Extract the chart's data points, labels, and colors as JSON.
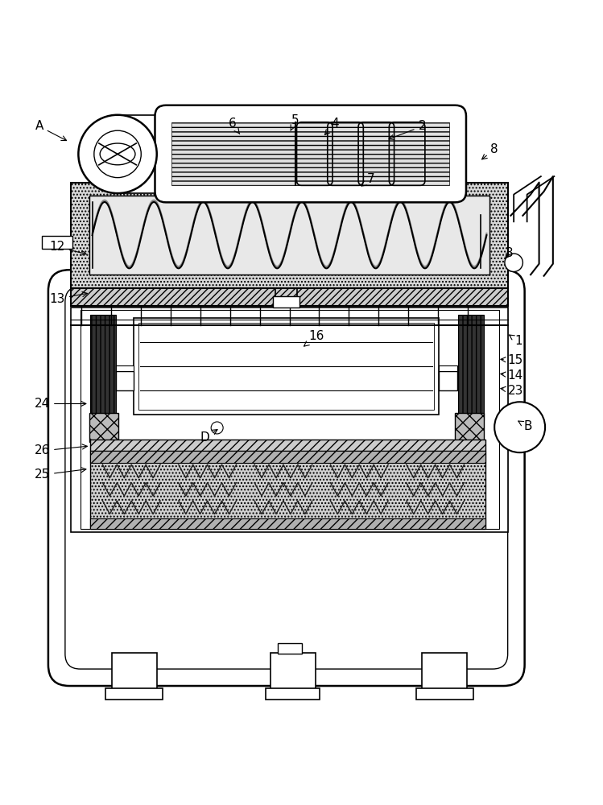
{
  "bg_color": "#ffffff",
  "lc": "#000000",
  "figsize": [
    7.49,
    10.0
  ],
  "dpi": 100,
  "labels": {
    "A": [
      0.065,
      0.958,
      0.115,
      0.932
    ],
    "2": [
      0.7,
      0.958,
      0.64,
      0.935
    ],
    "8": [
      0.82,
      0.92,
      0.795,
      0.9
    ],
    "4": [
      0.555,
      0.962,
      0.535,
      0.94
    ],
    "5": [
      0.49,
      0.968,
      0.48,
      0.947
    ],
    "6": [
      0.385,
      0.962,
      0.4,
      0.942
    ],
    "7": [
      0.615,
      0.87,
      0.595,
      0.856
    ],
    "12": [
      0.095,
      0.758,
      0.148,
      0.745
    ],
    "13": [
      0.095,
      0.672,
      0.15,
      0.682
    ],
    "3": [
      0.845,
      0.748,
      0.835,
      0.735
    ],
    "1": [
      0.86,
      0.602,
      0.84,
      0.615
    ],
    "16": [
      0.525,
      0.61,
      0.5,
      0.59
    ],
    "15": [
      0.855,
      0.57,
      0.825,
      0.572
    ],
    "14": [
      0.855,
      0.545,
      0.825,
      0.548
    ],
    "23": [
      0.855,
      0.52,
      0.825,
      0.524
    ],
    "24": [
      0.07,
      0.498,
      0.148,
      0.498
    ],
    "D": [
      0.34,
      0.442,
      0.365,
      0.458
    ],
    "B": [
      0.875,
      0.46,
      0.855,
      0.472
    ],
    "26": [
      0.07,
      0.42,
      0.15,
      0.428
    ],
    "25": [
      0.07,
      0.38,
      0.148,
      0.39
    ]
  }
}
